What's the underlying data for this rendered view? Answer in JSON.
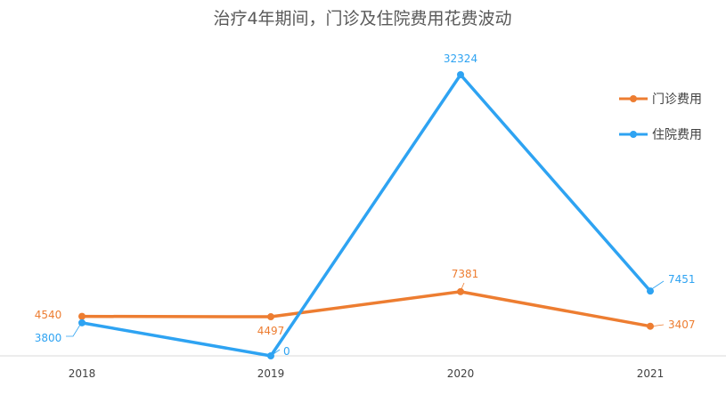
{
  "chart_data": {
    "type": "line",
    "title": "治疗4年期间，门诊及住院费用花费波动",
    "categories": [
      "2018",
      "2019",
      "2020",
      "2021"
    ],
    "series": [
      {
        "name": "门诊费用",
        "values": [
          4540,
          4497,
          7381,
          3407
        ],
        "color": "#ED7D31"
      },
      {
        "name": "住院费用",
        "values": [
          3800,
          0,
          32324,
          7451
        ],
        "color": "#2EA3F2"
      }
    ],
    "ylim": [
      0,
      33500
    ],
    "grid": false,
    "legend": "right"
  }
}
